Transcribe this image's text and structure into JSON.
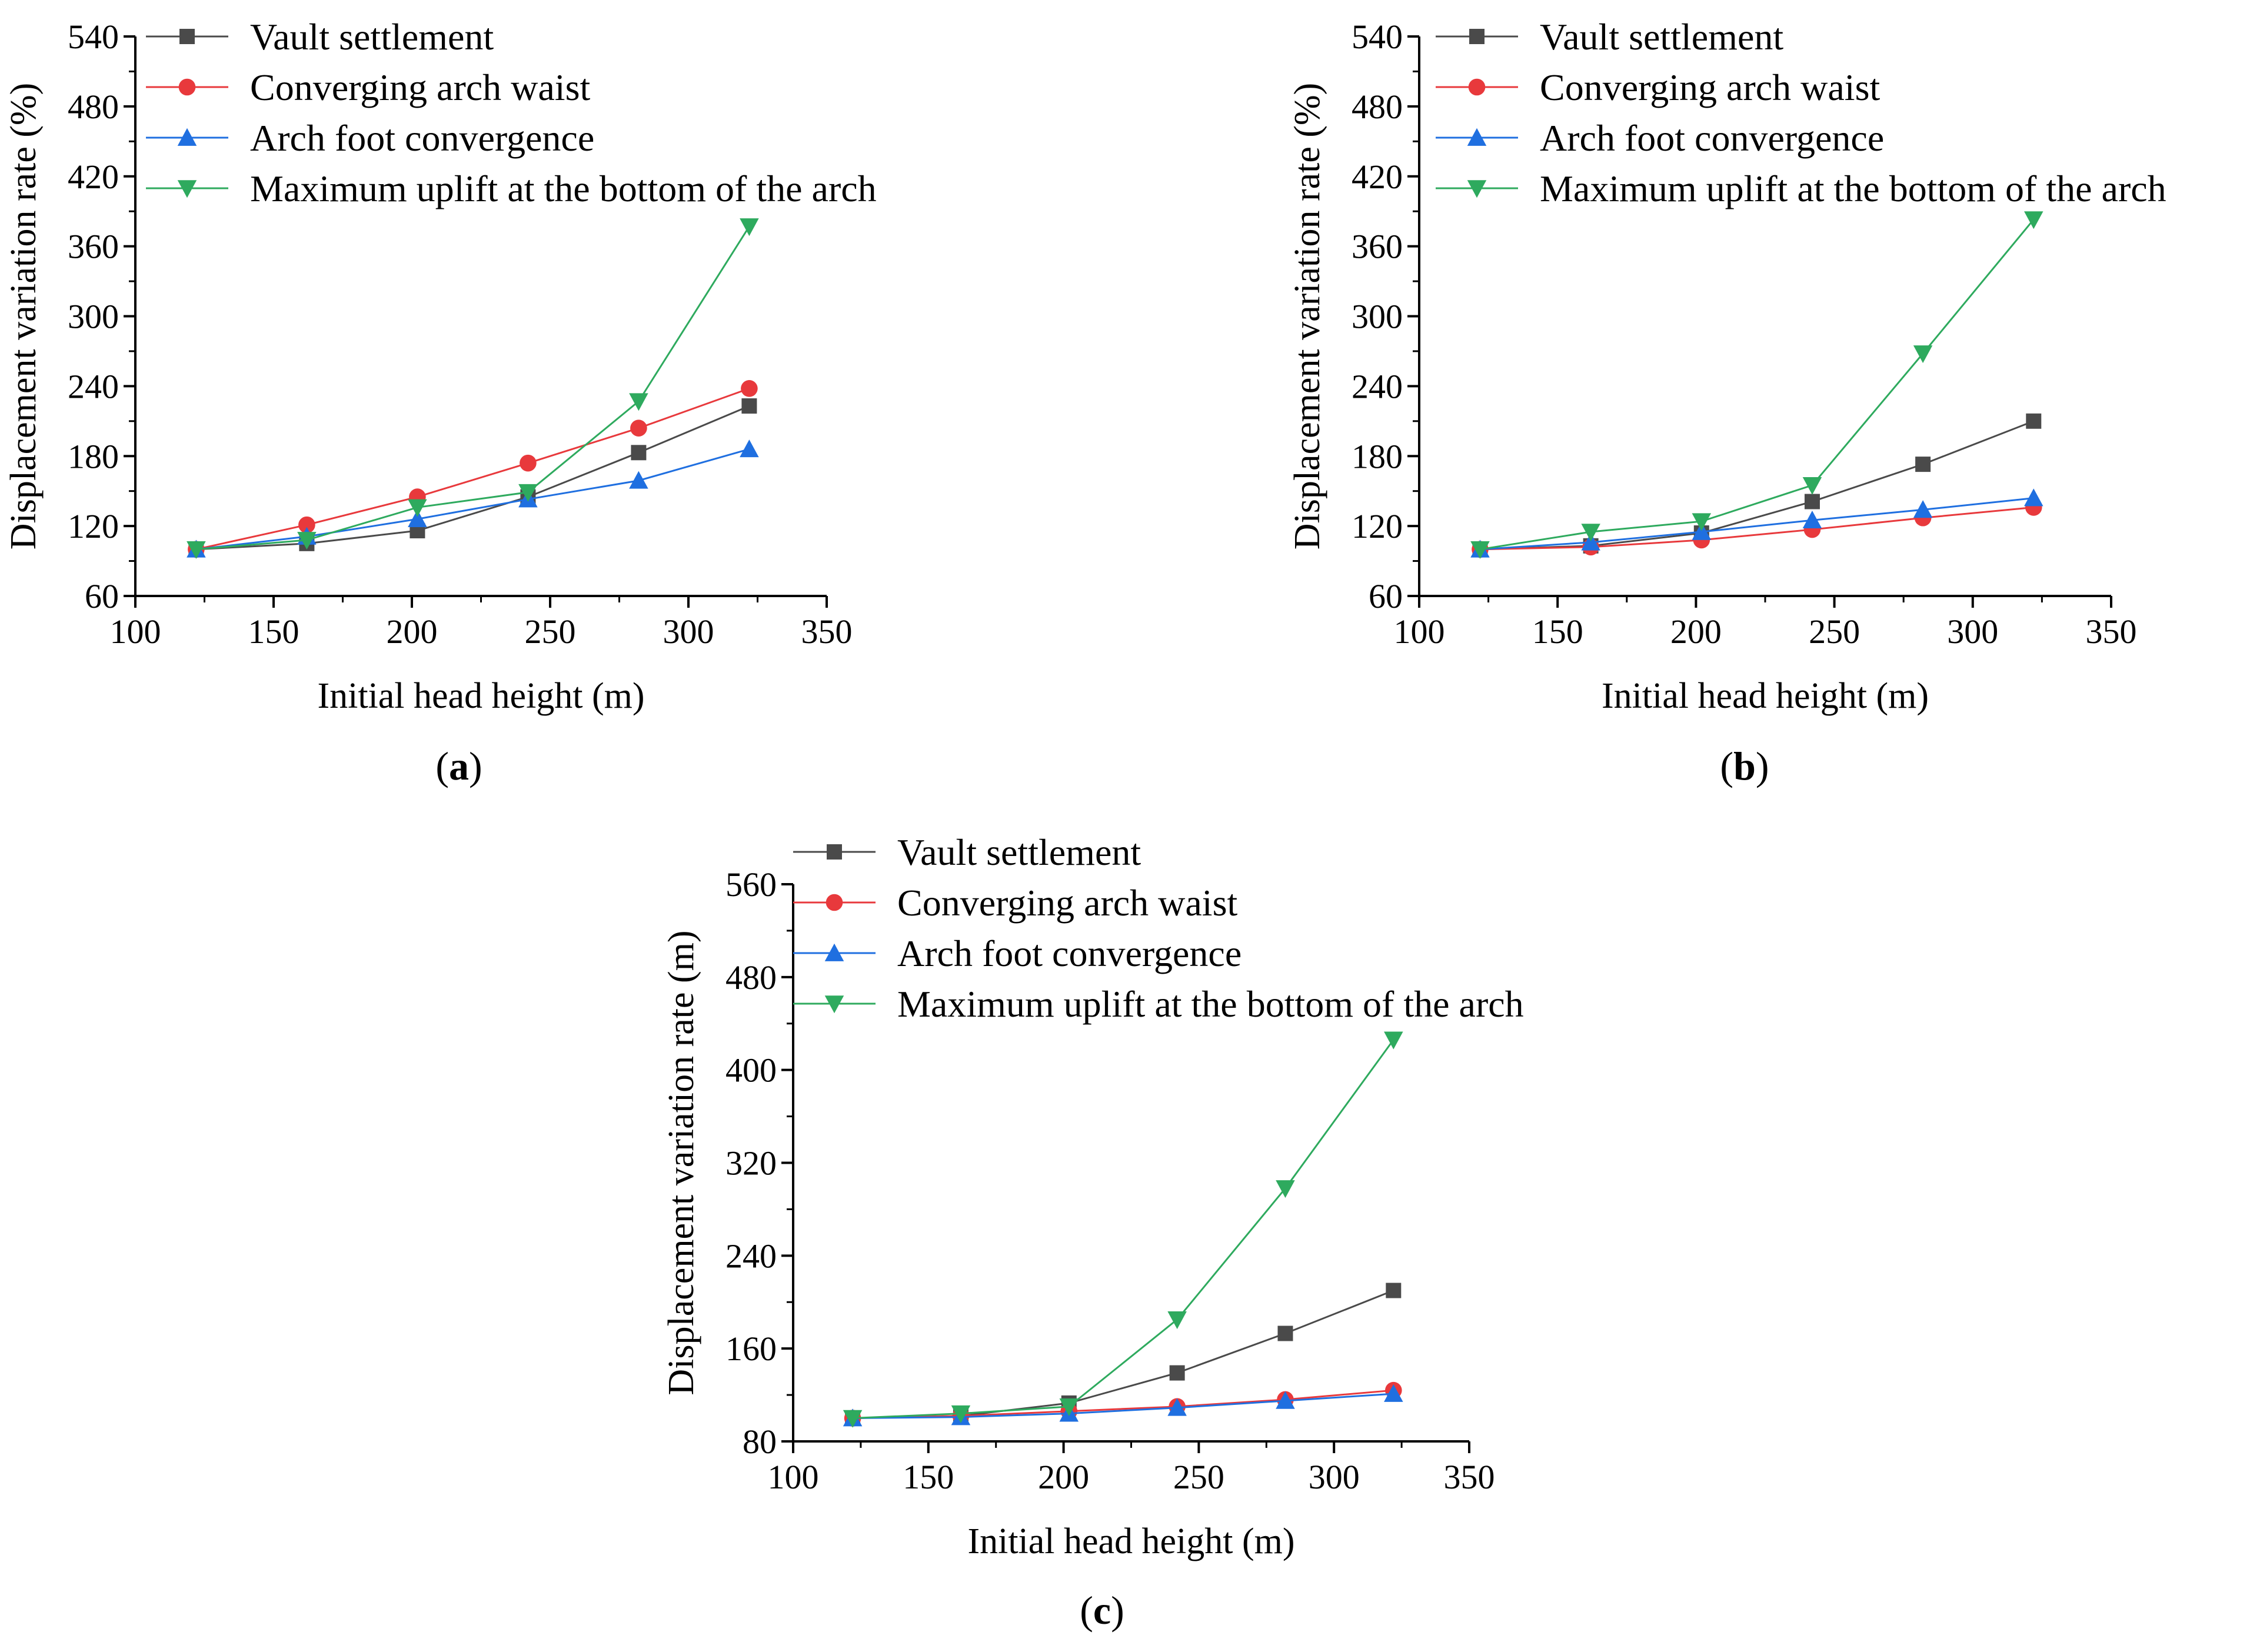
{
  "chart_data": [
    {
      "panel_label": "a",
      "type": "line",
      "xlabel": "Initial head height (m)",
      "ylabel": "Displacement variation rate (%)",
      "xlim": [
        100,
        350
      ],
      "ylim": [
        60,
        540
      ],
      "xticks": [
        100,
        150,
        200,
        250,
        300,
        350
      ],
      "yticks": [
        60,
        120,
        180,
        240,
        300,
        360,
        420,
        480,
        540
      ],
      "x": [
        122,
        162,
        202,
        242,
        282,
        322
      ],
      "legend_position": "top-left",
      "series": [
        {
          "name": "Vault settlement",
          "color": "#4a4a4a",
          "marker": "square",
          "values": [
            100,
            105,
            116,
            145,
            183,
            223
          ]
        },
        {
          "name": "Converging arch waist",
          "color": "#e8393c",
          "marker": "circle",
          "values": [
            100,
            121,
            145,
            174,
            204,
            238
          ]
        },
        {
          "name": "Arch foot convergence",
          "color": "#1f6fe0",
          "marker": "triangle-up",
          "values": [
            100,
            111,
            126,
            143,
            159,
            186
          ]
        },
        {
          "name": "Maximum uplift at the bottom of the arch",
          "color": "#2eaa5e",
          "marker": "triangle-down",
          "values": [
            100,
            108,
            136,
            149,
            227,
            377
          ]
        }
      ]
    },
    {
      "panel_label": "b",
      "type": "line",
      "xlabel": "Initial head height (m)",
      "ylabel": "Displacement variation rate (%)",
      "xlim": [
        100,
        350
      ],
      "ylim": [
        60,
        540
      ],
      "xticks": [
        100,
        150,
        200,
        250,
        300,
        350
      ],
      "yticks": [
        60,
        120,
        180,
        240,
        300,
        360,
        420,
        480,
        540
      ],
      "x": [
        122,
        162,
        202,
        242,
        282,
        322
      ],
      "legend_position": "top-left",
      "series": [
        {
          "name": "Vault settlement",
          "color": "#4a4a4a",
          "marker": "square",
          "values": [
            100,
            103,
            114,
            141,
            173,
            210
          ]
        },
        {
          "name": "Converging arch waist",
          "color": "#e8393c",
          "marker": "circle",
          "values": [
            100,
            102,
            108,
            117,
            127,
            136
          ]
        },
        {
          "name": "Arch foot convergence",
          "color": "#1f6fe0",
          "marker": "triangle-up",
          "values": [
            100,
            106,
            115,
            125,
            134,
            144
          ]
        },
        {
          "name": "Maximum uplift at the bottom of the arch",
          "color": "#2eaa5e",
          "marker": "triangle-down",
          "values": [
            100,
            115,
            124,
            155,
            268,
            383
          ]
        }
      ]
    },
    {
      "panel_label": "c",
      "type": "line",
      "xlabel": "Initial head height (m)",
      "ylabel": "Displacement variation rate (m)",
      "xlim": [
        100,
        350
      ],
      "ylim": [
        80,
        560
      ],
      "xticks": [
        100,
        150,
        200,
        250,
        300,
        350
      ],
      "yticks": [
        80,
        160,
        240,
        320,
        400,
        480,
        560
      ],
      "x": [
        122,
        162,
        202,
        242,
        282,
        322
      ],
      "legend_position": "top-left",
      "series": [
        {
          "name": "Vault settlement",
          "color": "#4a4a4a",
          "marker": "square",
          "values": [
            100,
            102,
            113,
            139,
            173,
            210
          ]
        },
        {
          "name": "Converging arch waist",
          "color": "#e8393c",
          "marker": "circle",
          "values": [
            100,
            102,
            106,
            110,
            116,
            124
          ]
        },
        {
          "name": "Arch foot convergence",
          "color": "#1f6fe0",
          "marker": "triangle-up",
          "values": [
            100,
            101,
            104,
            109,
            115,
            121
          ]
        },
        {
          "name": "Maximum uplift at the bottom of the arch",
          "color": "#2eaa5e",
          "marker": "triangle-down",
          "values": [
            100,
            104,
            110,
            185,
            298,
            426
          ]
        }
      ]
    }
  ]
}
